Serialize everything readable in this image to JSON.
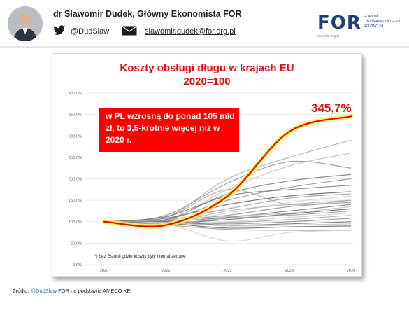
{
  "header": {
    "author": "dr Sławomir Dudek, Główny Ekonomista FOR",
    "twitter_handle": "@DudSlaw",
    "email": "slawomir.dudek@for.org.pl",
    "logo": {
      "text": "FOR",
      "subtitle_lines": [
        "FORUM",
        "OBYWATELSKIEGO",
        "ROZWOJU"
      ],
      "url": "www.for.org.pl"
    }
  },
  "chart_data": {
    "type": "line",
    "title_lines": [
      "Koszty obsługi długu w krajach EU",
      "2020=100"
    ],
    "xlabel": "",
    "ylabel": "",
    "x": [
      "2020",
      "2021",
      "2022",
      "2023",
      "2024"
    ],
    "y_ticks": [
      "0,0%",
      "50,0%",
      "100,0%",
      "150,0%",
      "200,0%",
      "250,0%",
      "300,0%",
      "350,0%",
      "400,0%"
    ],
    "ylim": [
      0,
      400
    ],
    "grid": true,
    "legend": "none",
    "highlight_series": {
      "values": [
        100,
        92,
        160,
        310,
        345.7
      ],
      "color": "#e01010",
      "glow_color": "#fff05a",
      "end_label": "345,7%"
    },
    "series": [
      {
        "values": [
          100,
          110,
          200,
          250,
          290
        ]
      },
      {
        "values": [
          100,
          115,
          190,
          240,
          225
        ]
      },
      {
        "values": [
          100,
          105,
          165,
          195,
          210
        ]
      },
      {
        "values": [
          100,
          102,
          175,
          230,
          260
        ]
      },
      {
        "values": [
          100,
          108,
          140,
          160,
          170
        ]
      },
      {
        "values": [
          100,
          104,
          130,
          155,
          165
        ]
      },
      {
        "values": [
          100,
          100,
          120,
          145,
          160
        ]
      },
      {
        "values": [
          100,
          98,
          125,
          140,
          150
        ]
      },
      {
        "values": [
          100,
          103,
          115,
          135,
          145
        ]
      },
      {
        "values": [
          100,
          101,
          110,
          125,
          140
        ]
      },
      {
        "values": [
          100,
          99,
          112,
          120,
          135
        ]
      },
      {
        "values": [
          100,
          97,
          105,
          118,
          130
        ]
      },
      {
        "values": [
          100,
          95,
          108,
          115,
          125
        ]
      },
      {
        "values": [
          100,
          96,
          100,
          110,
          120
        ]
      },
      {
        "values": [
          100,
          94,
          98,
          105,
          115
        ]
      },
      {
        "values": [
          100,
          102,
          95,
          100,
          108
        ]
      },
      {
        "values": [
          100,
          100,
          92,
          95,
          100
        ]
      },
      {
        "values": [
          100,
          98,
          90,
          92,
          95
        ]
      },
      {
        "values": [
          100,
          96,
          85,
          88,
          90
        ]
      },
      {
        "values": [
          100,
          92,
          82,
          80,
          80
        ]
      },
      {
        "values": [
          100,
          95,
          55,
          75,
          80
        ]
      },
      {
        "values": [
          100,
          110,
          175,
          140,
          150
        ]
      },
      {
        "values": [
          100,
          105,
          150,
          180,
          200
        ]
      },
      {
        "values": [
          100,
          112,
          160,
          175,
          185
        ]
      }
    ],
    "callout": "w PL wzrosną do ponad 105 mld zł, to 3,5-krotnie więcej niż w 2020 r.",
    "footnote": "*) bez Estonii gdzie koszty były niemal zerowe"
  },
  "source": {
    "prefix": "Źródło:",
    "handle": "@DudSlaw",
    "rest": "FOR na podstawie AMECO KE"
  },
  "colors": {
    "accent": "#e01010",
    "callout_bg": "#ff0000",
    "brand_navy": "#1f3f73",
    "gray_lines": "#8c8c8c"
  }
}
